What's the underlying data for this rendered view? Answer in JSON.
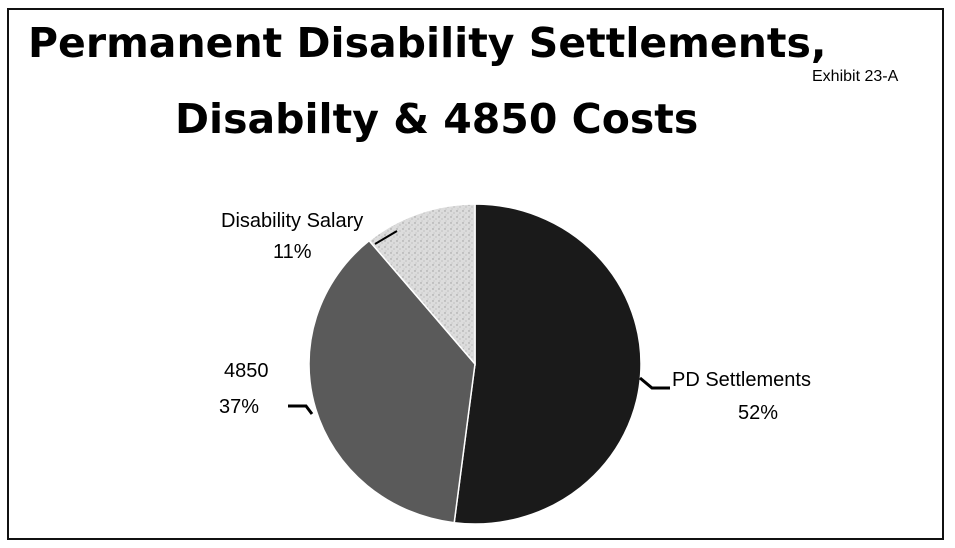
{
  "header": {
    "title_line1": "Permanent Disability Settlements,",
    "title_line2": "Disabilty & 4850 Costs",
    "exhibit": "Exhibit 23-A"
  },
  "chart_data": {
    "type": "pie",
    "title": "Permanent Disability Settlements, Disabilty & 4850 Costs",
    "slices": [
      {
        "label": "PD Settlements",
        "value": 52,
        "value_label": "52%",
        "color": "#1a1a1a"
      },
      {
        "label": "4850",
        "value": 37,
        "value_label": "37%",
        "color": "#5a5a5a"
      },
      {
        "label": "Disability Salary",
        "value": 11,
        "value_label": "11%",
        "color": "#d6d6d6"
      }
    ],
    "start": "12 o'clock",
    "direction": "clockwise",
    "legend": "none",
    "data_labels": "outside with leader lines"
  }
}
